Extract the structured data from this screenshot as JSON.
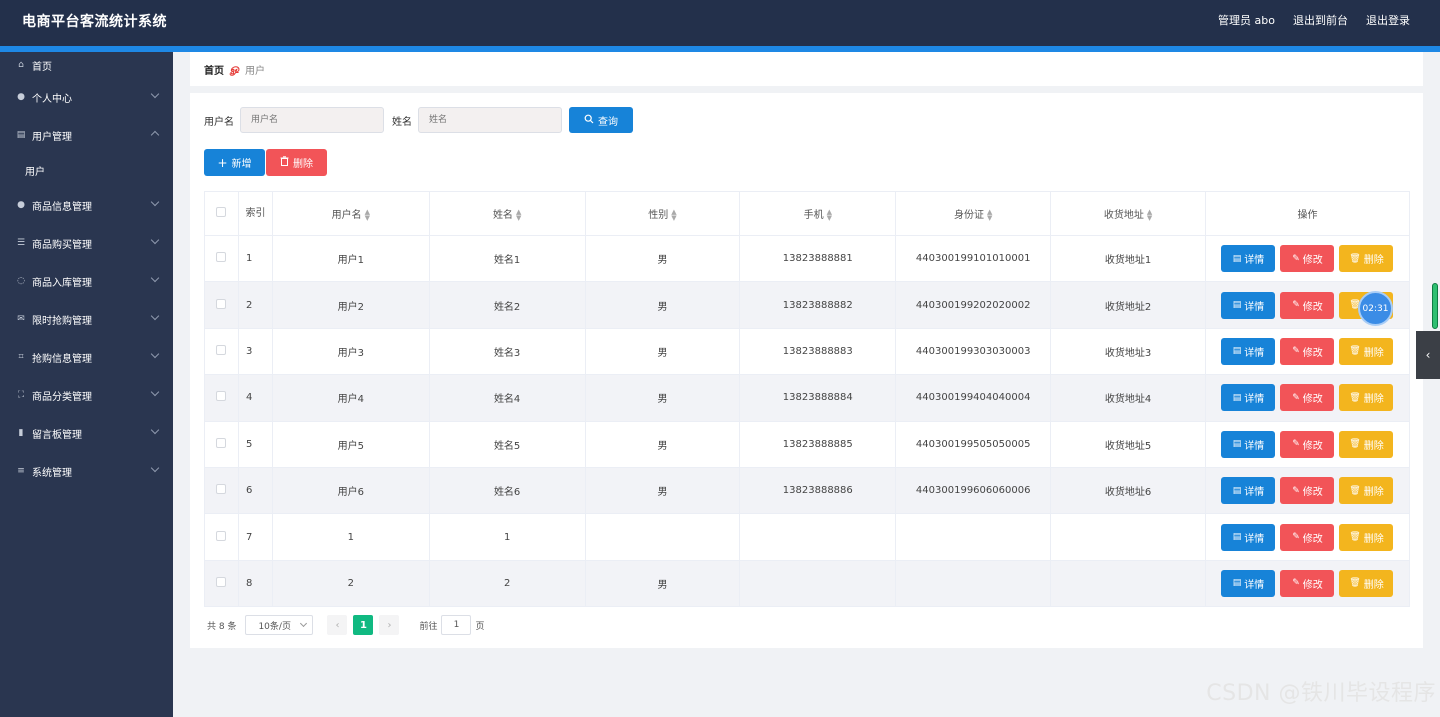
{
  "header": {
    "brand": "电商平台客流统计系统",
    "admin": "管理员 abo",
    "to_front": "退出到前台",
    "logout": "退出登录"
  },
  "sidebar": {
    "items": [
      {
        "label": "首页",
        "icon": "home-icon",
        "glyph": "⌂"
      },
      {
        "label": "个人中心",
        "icon": "user-icon",
        "glyph": "●"
      },
      {
        "label": "用户管理",
        "icon": "clipboard-icon",
        "glyph": "▤"
      },
      {
        "label": "商品信息管理",
        "icon": "location-icon",
        "glyph": "●"
      },
      {
        "label": "商品购买管理",
        "icon": "sliders-icon",
        "glyph": "☰"
      },
      {
        "label": "商品入库管理",
        "icon": "pin-icon",
        "glyph": "◌"
      },
      {
        "label": "限时抢购管理",
        "icon": "mail-icon",
        "glyph": "✉"
      },
      {
        "label": "抢购信息管理",
        "icon": "crop-icon",
        "glyph": "⌗"
      },
      {
        "label": "商品分类管理",
        "icon": "frame-icon",
        "glyph": "⛶"
      },
      {
        "label": "留言板管理",
        "icon": "bar-chart-icon",
        "glyph": "▮"
      },
      {
        "label": "系统管理",
        "icon": "menu-icon",
        "glyph": "≡"
      }
    ],
    "sub_user": "用户"
  },
  "breadcrumb": {
    "home": "首页",
    "sep": "ௐ",
    "current": "用户"
  },
  "search": {
    "username_label": "用户名",
    "username_placeholder": "用户名",
    "name_label": "姓名",
    "name_placeholder": "姓名",
    "query": "查询"
  },
  "actions": {
    "add": "新增",
    "delete": "删除"
  },
  "table": {
    "headers": {
      "index": "索引",
      "username": "用户名",
      "name": "姓名",
      "gender": "性别",
      "phone": "手机",
      "idcard": "身份证",
      "address": "收货地址",
      "ops": "操作"
    },
    "op_labels": {
      "detail": "详情",
      "edit": "修改",
      "remove": "删除"
    },
    "rows": [
      {
        "index": "1",
        "username": "用户1",
        "name": "姓名1",
        "gender": "男",
        "phone": "13823888881",
        "idcard": "440300199101010001",
        "address": "收货地址1"
      },
      {
        "index": "2",
        "username": "用户2",
        "name": "姓名2",
        "gender": "男",
        "phone": "13823888882",
        "idcard": "440300199202020002",
        "address": "收货地址2"
      },
      {
        "index": "3",
        "username": "用户3",
        "name": "姓名3",
        "gender": "男",
        "phone": "13823888883",
        "idcard": "440300199303030003",
        "address": "收货地址3"
      },
      {
        "index": "4",
        "username": "用户4",
        "name": "姓名4",
        "gender": "男",
        "phone": "13823888884",
        "idcard": "440300199404040004",
        "address": "收货地址4"
      },
      {
        "index": "5",
        "username": "用户5",
        "name": "姓名5",
        "gender": "男",
        "phone": "13823888885",
        "idcard": "440300199505050005",
        "address": "收货地址5"
      },
      {
        "index": "6",
        "username": "用户6",
        "name": "姓名6",
        "gender": "男",
        "phone": "13823888886",
        "idcard": "440300199606060006",
        "address": "收货地址6"
      },
      {
        "index": "7",
        "username": "1",
        "name": "1",
        "gender": "",
        "phone": "",
        "idcard": "",
        "address": ""
      },
      {
        "index": "8",
        "username": "2",
        "name": "2",
        "gender": "男",
        "phone": "",
        "idcard": "",
        "address": ""
      }
    ]
  },
  "pagination": {
    "total": "共 8 条",
    "page_size": "10条/页",
    "current_page": "1",
    "goto_prefix": "前往",
    "goto_value": "1",
    "goto_suffix": "页"
  },
  "overlay": {
    "timer": "02:31"
  },
  "watermark": "CSDN @铁川毕设程序",
  "colors": {
    "header_bg": "#23304b",
    "sidebar_bg": "#2a3650",
    "primary": "#1783d8",
    "danger": "#f25458",
    "warning": "#f3b51e",
    "success": "#10b981"
  }
}
